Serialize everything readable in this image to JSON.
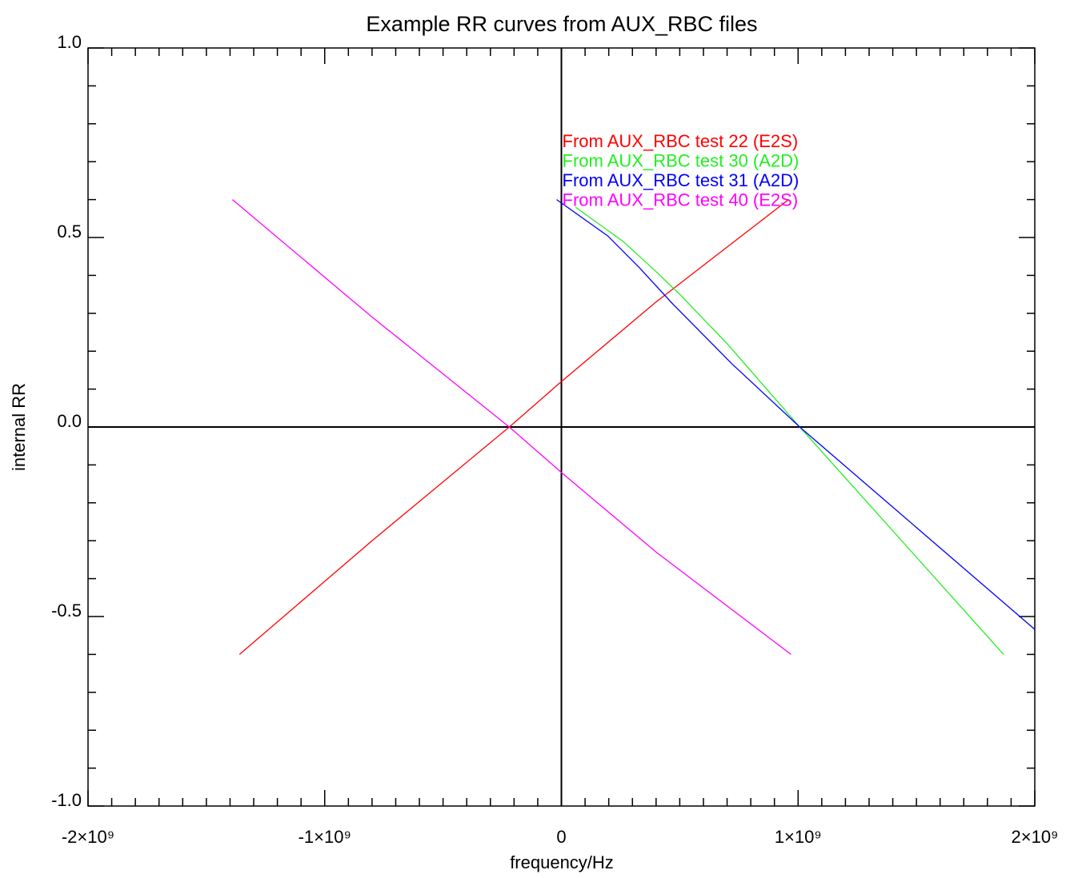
{
  "chart_data": {
    "type": "line",
    "title": "Example RR curves from AUX_RBC files",
    "xlabel": "frequency/Hz",
    "ylabel": "internal RR",
    "xlim": [
      -2000000000,
      2000000000
    ],
    "ylim": [
      -1.0,
      1.0
    ],
    "xticks": [
      {
        "value": -2000000000,
        "label": "-2×10⁹"
      },
      {
        "value": -1000000000,
        "label": "-1×10⁹"
      },
      0,
      {
        "value": 1000000000,
        "label": "1×10⁹"
      },
      {
        "value": 2000000000,
        "label": "2×10⁹"
      }
    ],
    "yticks": [
      {
        "value": -1.0,
        "label": "-1.0"
      },
      -0.5,
      {
        "value": 0.0,
        "label": "0.0"
      },
      0.5,
      {
        "value": 1.0,
        "label": "1.0"
      }
    ],
    "xminor": 10,
    "yminor": 5,
    "zero_lines": true,
    "series": [
      {
        "name": "From AUX_RBC test 22 (E2S)",
        "color": "#ff0000",
        "x": [
          -1360000000,
          -800000000,
          -220000000,
          0,
          400000000,
          960000000
        ],
        "values": [
          -0.6,
          -0.3,
          0.0,
          0.12,
          0.33,
          0.6
        ]
      },
      {
        "name": "From AUX_RBC test 30 (A2D)",
        "color": "#22ee22",
        "x": [
          60000000,
          260000000,
          400000000,
          500000000,
          700000000,
          1007000000,
          1868000000
        ],
        "values": [
          0.58,
          0.49,
          0.41,
          0.35,
          0.22,
          0.0,
          -0.6
        ]
      },
      {
        "name": "From AUX_RBC test 31 (A2D)",
        "color": "#0000ff",
        "x": [
          -20000000,
          196000000,
          330000000,
          470000000,
          720000000,
          1007000000,
          2000000000
        ],
        "values": [
          0.6,
          0.504,
          0.42,
          0.325,
          0.167,
          0.0,
          -0.534
        ]
      },
      {
        "name": "From AUX_RBC test 40 (E2S)",
        "color": "#ff00ff",
        "x": [
          -1390000000,
          -800000000,
          -220000000,
          0,
          400000000,
          970000000
        ],
        "values": [
          0.6,
          0.29,
          0.0,
          -0.12,
          -0.33,
          -0.6
        ]
      }
    ]
  }
}
